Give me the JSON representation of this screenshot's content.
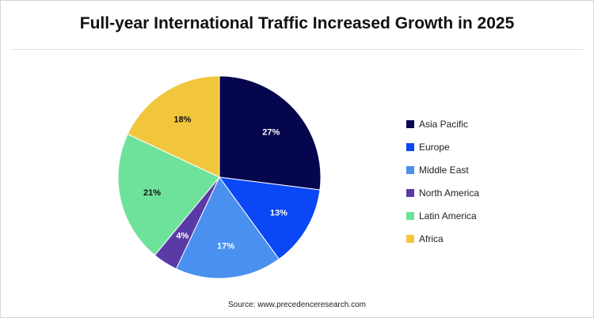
{
  "chart_data": {
    "type": "pie",
    "title": "Full-year International Traffic Increased Growth in 2025",
    "categories": [
      "Asia Pacific",
      "Europe",
      "Middle East",
      "North America",
      "Latin America",
      "Africa"
    ],
    "values": [
      27,
      13,
      17,
      4,
      21,
      18
    ],
    "labels": [
      "27%",
      "13%",
      "17%",
      "4%",
      "21%",
      "18%"
    ],
    "colors": [
      "#06064f",
      "#0a47f5",
      "#4a90ef",
      "#5a3aa6",
      "#6ee29b",
      "#f2c63c"
    ],
    "label_colors": [
      "#ffffff",
      "#ffffff",
      "#ffffff",
      "#ffffff",
      "#111111",
      "#111111"
    ],
    "legend_position": "right",
    "start": "top",
    "direction": "clockwise"
  },
  "source": "Source: www.precedenceresearch.com"
}
